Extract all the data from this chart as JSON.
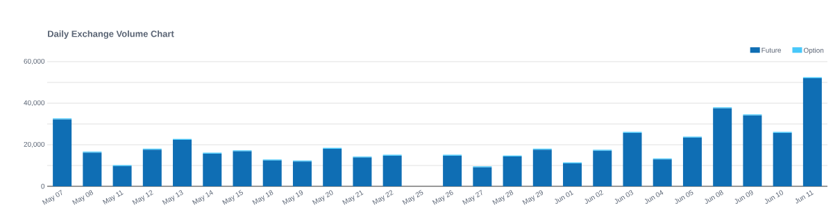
{
  "chart_data": {
    "type": "bar",
    "title": "Daily Exchange Volume Chart",
    "stacked": true,
    "grid": "y",
    "legend": "top right",
    "categories": [
      "May 07",
      "May 08",
      "May 11",
      "May 12",
      "May 13",
      "May 14",
      "May 15",
      "May 18",
      "May 19",
      "May 20",
      "May 21",
      "May 22",
      "May 25",
      "May 26",
      "May 27",
      "May 28",
      "May 29",
      "Jun 01",
      "Jun 02",
      "Jun 03",
      "Jun 04",
      "Jun 05",
      "Jun 08",
      "Jun 09",
      "Jun 10",
      "Jun 11"
    ],
    "series": [
      {
        "name": "Future",
        "color": "#0f6eb4",
        "values": [
          32200,
          16200,
          9700,
          17600,
          22300,
          15700,
          16800,
          12400,
          11900,
          18000,
          13800,
          14700,
          null,
          14700,
          9100,
          14300,
          17600,
          11000,
          17100,
          25700,
          12900,
          23400,
          37500,
          34100,
          25700,
          52000
        ]
      },
      {
        "name": "Option",
        "color": "#48c8fa",
        "values": [
          500,
          500,
          500,
          500,
          500,
          500,
          500,
          500,
          500,
          500,
          500,
          500,
          null,
          500,
          500,
          500,
          500,
          500,
          500,
          500,
          500,
          500,
          500,
          500,
          500,
          500
        ]
      }
    ],
    "ylim": [
      0,
      60000
    ],
    "yticks": [
      0,
      {
        "value": 10000,
        "label": null
      },
      {
        "value": 20000,
        "label": "20,000"
      },
      {
        "value": 30000,
        "label": null
      },
      {
        "value": 40000,
        "label": "40,000"
      },
      {
        "value": 50000,
        "label": null
      },
      {
        "value": 60000,
        "label": "60,000"
      }
    ]
  }
}
